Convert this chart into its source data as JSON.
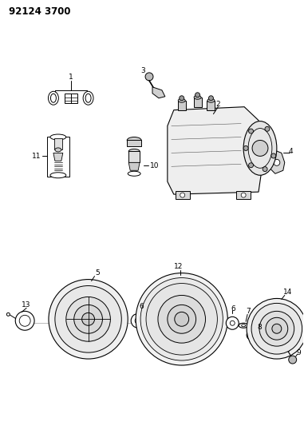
{
  "title": "92124 3700",
  "bg_color": "#ffffff",
  "line_color": "#000000",
  "fig_width": 3.81,
  "fig_height": 5.33,
  "dpi": 100
}
